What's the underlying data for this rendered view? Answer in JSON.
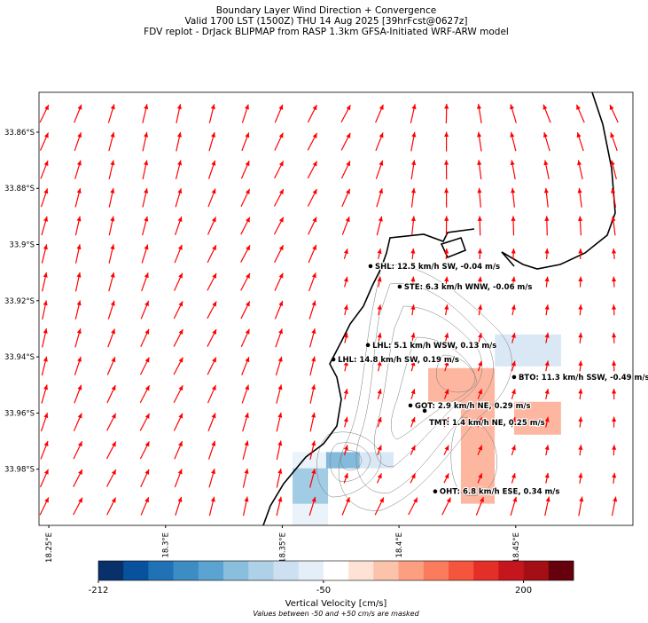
{
  "chart_data": {
    "type": "map",
    "title": [
      "Boundary Layer Wind Direction + Convergence",
      "Valid 1700 LST (1500Z) THU 14 Aug 2025 [39hrFcst@0627z]",
      "FDV replot - DrJack BLIPMAP from RASP 1.3km GFSA-Initiated WRF-ARW model"
    ],
    "xlim": [
      18.2458,
      18.5002
    ],
    "ylim": [
      -34.0,
      -33.8458
    ],
    "xticks": [
      {
        "value": 18.25,
        "label": "18.25°E"
      },
      {
        "value": 18.3,
        "label": "18.3°E"
      },
      {
        "value": 18.35,
        "label": "18.35°E"
      },
      {
        "value": 18.4,
        "label": "18.4°E"
      },
      {
        "value": 18.45,
        "label": "18.45°E"
      }
    ],
    "yticks": [
      {
        "value": -33.86,
        "label": "33.86°S"
      },
      {
        "value": -33.88,
        "label": "33.88°S"
      },
      {
        "value": -33.9,
        "label": "33.9°S"
      },
      {
        "value": -33.92,
        "label": "33.92°S"
      },
      {
        "value": -33.94,
        "label": "33.94°S"
      },
      {
        "value": -33.96,
        "label": "33.96°S"
      },
      {
        "value": -33.98,
        "label": "33.98°S"
      }
    ],
    "stations": [
      {
        "lon": 18.3878,
        "lat": -33.9077,
        "label": "SHL: 12.5 km/h SW, -0.04 m/s"
      },
      {
        "lon": 18.4003,
        "lat": -33.915,
        "label": "STE: 6.3 km/h WNW, -0.06 m/s"
      },
      {
        "lon": 18.3867,
        "lat": -33.9358,
        "label": "LHL: 5.1 km/h WSW, 0.13 m/s"
      },
      {
        "lon": 18.3719,
        "lat": -33.9409,
        "label": "LHL: 14.8 km/h SW, 0.19 m/s"
      },
      {
        "lon": 18.4493,
        "lat": -33.9472,
        "label": "BTO: 11.3 km/h SSW, -0.49 m/s"
      },
      {
        "lon": 18.4049,
        "lat": -33.9573,
        "label": "GOT: 2.9 km/h NE, 0.29 m/s"
      },
      {
        "lon": 18.411,
        "lat": -33.9592,
        "label": "TMT: 1.4 km/h NE, 0.25 m/s"
      },
      {
        "lon": 18.4155,
        "lat": -33.9879,
        "label": "OHT: 6.8 km/h ESE, 0.34 m/s"
      }
    ],
    "cells": [
      {
        "lon": [
          18.3544,
          18.3696
        ],
        "lat": [
          -33.9999,
          -33.9739
        ],
        "value": -60
      },
      {
        "lon": [
          18.3544,
          18.3696
        ],
        "lat": [
          -33.9923,
          -33.9797
        ],
        "value": -120
      },
      {
        "lon": [
          18.3688,
          18.3832
        ],
        "lat": [
          -33.9797,
          -33.9739
        ],
        "value": -140
      },
      {
        "lon": [
          18.3832,
          18.3977
        ],
        "lat": [
          -33.9797,
          -33.9739
        ],
        "value": -70
      },
      {
        "lon": [
          18.441,
          18.4694
        ],
        "lat": [
          -33.9434,
          -33.932
        ],
        "value": -80
      },
      {
        "lon": [
          18.4125,
          18.441
        ],
        "lat": [
          -33.956,
          -33.944
        ],
        "value": 70
      },
      {
        "lon": [
          18.4265,
          18.441
        ],
        "lat": [
          -33.9923,
          -33.956
        ],
        "value": 60
      },
      {
        "lon": [
          18.4493,
          18.4694
        ],
        "lat": [
          -33.9677,
          -33.956
        ],
        "value": 60
      }
    ],
    "colorbar": {
      "label": "Vertical Velocity [cm/s]",
      "note": "Values between -50 and +50 cm/s are masked",
      "levels": [
        -212,
        -194,
        -176,
        -158,
        -140,
        -122,
        -104,
        -86,
        -68,
        -50,
        -18.75,
        12.5,
        43.75,
        75,
        106.25,
        137.5,
        168.75,
        200,
        231.25,
        262.5
      ],
      "colors": [
        "#08306b",
        "#08519c",
        "#2171b5",
        "#3d8dc4",
        "#5ba3d0",
        "#89bedc",
        "#afd1e7",
        "#cde0f1",
        "#e3eef8",
        "#ffffff",
        "#fee2d5",
        "#fcc3ab",
        "#fc9f81",
        "#fb7c5c",
        "#f5553c",
        "#e32f27",
        "#c4161c",
        "#a30f15",
        "#67000d"
      ],
      "ticks": [
        -212,
        -50,
        200
      ]
    },
    "arrow_color": "#ff0000"
  }
}
